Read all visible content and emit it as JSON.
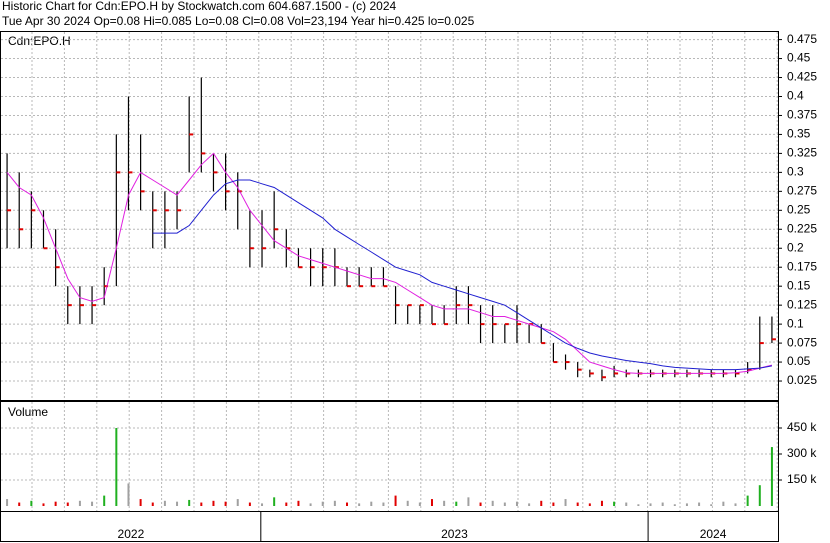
{
  "header": {
    "line1": "Historic Chart for Cdn:EPO.H by Stockwatch.com 604.687.1500 - (c) 2024",
    "line2": "Tue Apr 30 2024  Op=0.08  Hi=0.085  Lo=0.08  Cl=0.08  Vol=23,194  Year hi=0.425  lo=0.025"
  },
  "chart_data": [
    {
      "type": "ohlc",
      "label": "Cdn:EPO.H",
      "xlim": [
        0,
        64
      ],
      "ylim": [
        0,
        0.485
      ],
      "yticks": [
        0.025,
        0.05,
        0.075,
        0.1,
        0.125,
        0.15,
        0.175,
        0.2,
        0.225,
        0.25,
        0.275,
        0.3,
        0.325,
        0.35,
        0.375,
        0.4,
        0.425,
        0.45,
        0.475
      ],
      "grid": true,
      "bar_color": "#000000",
      "close_color": "#e00000",
      "high": [
        0.325,
        0.3,
        0.275,
        0.25,
        0.225,
        0.15,
        0.15,
        0.15,
        0.175,
        0.35,
        0.4,
        0.35,
        0.275,
        0.275,
        0.275,
        0.4,
        0.425,
        0.325,
        0.325,
        0.3,
        0.25,
        0.25,
        0.275,
        0.225,
        0.2,
        0.2,
        0.2,
        0.2,
        0.175,
        0.175,
        0.175,
        0.175,
        0.15,
        0.125,
        0.125,
        0.125,
        0.125,
        0.15,
        0.15,
        0.125,
        0.125,
        0.1,
        0.125,
        0.1,
        0.1,
        0.075,
        0.06,
        0.05,
        0.04,
        0.04,
        0.045,
        0.04,
        0.04,
        0.04,
        0.04,
        0.04,
        0.04,
        0.04,
        0.04,
        0.04,
        0.04,
        0.05,
        0.11,
        0.11
      ],
      "low": [
        0.2,
        0.2,
        0.2,
        0.2,
        0.15,
        0.1,
        0.1,
        0.1,
        0.125,
        0.15,
        0.25,
        0.25,
        0.2,
        0.2,
        0.225,
        0.3,
        0.3,
        0.275,
        0.25,
        0.225,
        0.175,
        0.175,
        0.2,
        0.175,
        0.175,
        0.15,
        0.15,
        0.15,
        0.15,
        0.15,
        0.15,
        0.15,
        0.1,
        0.1,
        0.1,
        0.1,
        0.1,
        0.1,
        0.1,
        0.075,
        0.075,
        0.075,
        0.075,
        0.075,
        0.075,
        0.05,
        0.04,
        0.03,
        0.03,
        0.025,
        0.03,
        0.03,
        0.03,
        0.03,
        0.03,
        0.03,
        0.03,
        0.03,
        0.03,
        0.03,
        0.03,
        0.035,
        0.04,
        0.075
      ],
      "close": [
        0.25,
        0.225,
        0.25,
        0.2,
        0.175,
        0.125,
        0.125,
        0.125,
        0.15,
        0.3,
        0.3,
        0.275,
        0.25,
        0.25,
        0.25,
        0.35,
        0.325,
        0.3,
        0.275,
        0.275,
        0.2,
        0.2,
        0.225,
        0.2,
        0.175,
        0.175,
        0.175,
        0.175,
        0.15,
        0.15,
        0.15,
        0.15,
        0.125,
        0.125,
        0.125,
        0.1,
        0.1,
        0.125,
        0.125,
        0.1,
        0.1,
        0.1,
        0.1,
        0.1,
        0.075,
        0.05,
        0.05,
        0.04,
        0.035,
        0.03,
        0.035,
        0.035,
        0.035,
        0.035,
        0.035,
        0.035,
        0.035,
        0.035,
        0.035,
        0.035,
        0.035,
        0.04,
        0.075,
        0.08
      ],
      "moving_averages": [
        {
          "color": "#e020e0",
          "values": [
            0.3,
            0.28,
            0.27,
            0.24,
            0.2,
            0.16,
            0.135,
            0.13,
            0.135,
            0.2,
            0.27,
            0.3,
            0.29,
            0.28,
            0.27,
            0.29,
            0.31,
            0.325,
            0.3,
            0.28,
            0.25,
            0.23,
            0.21,
            0.2,
            0.19,
            0.185,
            0.18,
            0.175,
            0.17,
            0.165,
            0.16,
            0.16,
            0.155,
            0.145,
            0.135,
            0.125,
            0.12,
            0.12,
            0.12,
            0.115,
            0.11,
            0.11,
            0.105,
            0.1,
            0.095,
            0.09,
            0.08,
            0.065,
            0.05,
            0.045,
            0.04,
            0.036,
            0.035,
            0.035,
            0.035,
            0.035,
            0.035,
            0.035,
            0.035,
            0.035,
            0.036,
            0.038,
            0.042,
            0.046
          ]
        },
        {
          "color": "#2020d0",
          "values": [
            null,
            null,
            null,
            null,
            null,
            null,
            null,
            null,
            null,
            null,
            null,
            null,
            0.22,
            0.22,
            0.22,
            0.23,
            0.25,
            0.27,
            0.285,
            0.29,
            0.29,
            0.285,
            0.28,
            0.27,
            0.26,
            0.25,
            0.24,
            0.225,
            0.215,
            0.205,
            0.195,
            0.185,
            0.175,
            0.17,
            0.165,
            0.155,
            0.15,
            0.145,
            0.14,
            0.135,
            0.13,
            0.125,
            0.115,
            0.105,
            0.095,
            0.085,
            0.075,
            0.068,
            0.062,
            0.058,
            0.055,
            0.052,
            0.05,
            0.048,
            0.045,
            0.043,
            0.042,
            0.041,
            0.04,
            0.04,
            0.04,
            0.041,
            0.042,
            0.045
          ]
        }
      ],
      "periods": [
        {
          "label": "2022",
          "start": 0,
          "end": 21.4
        },
        {
          "label": "2023",
          "start": 21.4,
          "end": 53.3
        },
        {
          "label": "2024",
          "start": 53.3,
          "end": 64
        }
      ]
    },
    {
      "type": "volume",
      "label": "Volume",
      "ylim": [
        0,
        600000
      ],
      "yticks": [
        {
          "value": 150000,
          "label": "150 k"
        },
        {
          "value": 300000,
          "label": "300 k"
        },
        {
          "value": 450000,
          "label": "450 k"
        }
      ],
      "grid": true,
      "up_color": "#20b020",
      "down_color": "#e00000",
      "flat_color": "#a0a0a0",
      "values": [
        40000,
        20000,
        30000,
        15000,
        25000,
        20000,
        30000,
        25000,
        60000,
        450000,
        130000,
        40000,
        20000,
        30000,
        25000,
        35000,
        20000,
        30000,
        25000,
        40000,
        20000,
        15000,
        50000,
        20000,
        30000,
        15000,
        25000,
        30000,
        20000,
        15000,
        25000,
        20000,
        60000,
        30000,
        20000,
        40000,
        30000,
        25000,
        50000,
        20000,
        30000,
        20000,
        25000,
        15000,
        30000,
        20000,
        40000,
        20000,
        15000,
        30000,
        25000,
        20000,
        10000,
        15000,
        20000,
        10000,
        15000,
        20000,
        10000,
        25000,
        15000,
        60000,
        120000,
        340000
      ]
    }
  ]
}
